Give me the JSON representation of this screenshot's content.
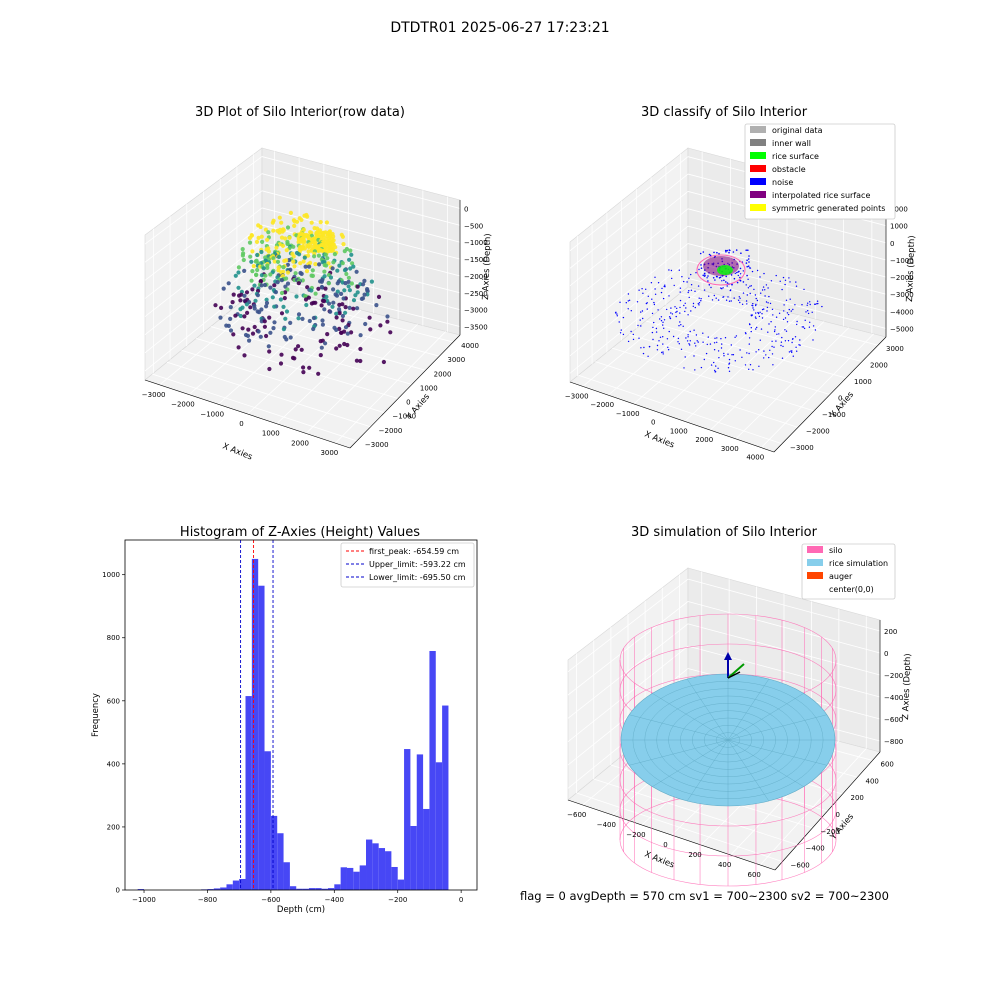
{
  "figure": {
    "suptitle": "DTDTR01 2025-06-27 17:23:21",
    "footer": "flag = 0     avgDepth = 570 cm  sv1 = 700~2300  sv2 = 700~2300"
  },
  "chart_data": [
    {
      "id": "raw",
      "type": "scatter",
      "title": "3D Plot of Silo Interior(row data)",
      "xlabel": "X Axies",
      "ylabel": "Y Axies",
      "zlabel": "Z Axies (Depth)",
      "x_ticks": [
        "−3000",
        "−2000",
        "−1000",
        "0",
        "1000",
        "2000",
        "3000"
      ],
      "y_ticks": [
        "−3000",
        "−2000",
        "−1000",
        "0",
        "1000",
        "2000",
        "3000",
        "4000"
      ],
      "z_ticks": [
        "0",
        "−500",
        "−1000",
        "−1500",
        "−2000",
        "−2500",
        "−3000",
        "−3500"
      ],
      "colormap": [
        "#440154",
        "#3b528b",
        "#21918c",
        "#5ec962",
        "#fde725"
      ]
    },
    {
      "id": "classify",
      "type": "scatter",
      "title": "3D classify of Silo Interior",
      "xlabel": "X Axies",
      "ylabel": "Y Axies",
      "zlabel": "Z Axies (Depth)",
      "x_ticks": [
        "−3000",
        "−2000",
        "−1000",
        "0",
        "1000",
        "2000",
        "3000",
        "4000"
      ],
      "y_ticks": [
        "−3000",
        "−2000",
        "−1000",
        "0",
        "1000",
        "2000",
        "3000"
      ],
      "z_ticks": [
        "2000",
        "1000",
        "0",
        "−1000",
        "−2000",
        "−3000",
        "−4000",
        "−5000"
      ],
      "legend_position": "top-right",
      "legend": [
        {
          "label": "original data",
          "color": "#b0b0b0"
        },
        {
          "label": "inner wall",
          "color": "#808080"
        },
        {
          "label": "rice surface",
          "color": "#00ff00"
        },
        {
          "label": "obstacle",
          "color": "#ff0000"
        },
        {
          "label": "noise",
          "color": "#0000ff"
        },
        {
          "label": "interpolated rice surface",
          "color": "#800080"
        },
        {
          "label": "symmetric generated points",
          "color": "#ffff00"
        }
      ]
    },
    {
      "id": "hist",
      "type": "bar",
      "title": "Histogram of Z-Axies (Height) Values",
      "xlabel": "Depth (cm)",
      "ylabel": "Frequency",
      "xlim": [
        -1060,
        50
      ],
      "ylim": [
        0,
        1110
      ],
      "bar_color": "#4747f5",
      "bin_width": 20,
      "x_ticks": [
        -1000,
        -800,
        -600,
        -400,
        -200,
        0
      ],
      "x_tick_labels": [
        "−1000",
        "−800",
        "−600",
        "−400",
        "−200",
        "0"
      ],
      "y_ticks": [
        0,
        200,
        400,
        600,
        800,
        1000
      ],
      "bins": [
        {
          "x": -1020,
          "v": 3
        },
        {
          "x": -820,
          "v": 2
        },
        {
          "x": -800,
          "v": 3
        },
        {
          "x": -780,
          "v": 5
        },
        {
          "x": -760,
          "v": 8
        },
        {
          "x": -740,
          "v": 18
        },
        {
          "x": -720,
          "v": 30
        },
        {
          "x": -700,
          "v": 35
        },
        {
          "x": -680,
          "v": 615
        },
        {
          "x": -660,
          "v": 1050
        },
        {
          "x": -640,
          "v": 965
        },
        {
          "x": -620,
          "v": 440
        },
        {
          "x": -600,
          "v": 235
        },
        {
          "x": -580,
          "v": 180
        },
        {
          "x": -560,
          "v": 88
        },
        {
          "x": -540,
          "v": 12
        },
        {
          "x": -520,
          "v": 4
        },
        {
          "x": -500,
          "v": 4
        },
        {
          "x": -480,
          "v": 6
        },
        {
          "x": -460,
          "v": 6
        },
        {
          "x": -440,
          "v": 4
        },
        {
          "x": -420,
          "v": 6
        },
        {
          "x": -400,
          "v": 18
        },
        {
          "x": -380,
          "v": 72
        },
        {
          "x": -360,
          "v": 70
        },
        {
          "x": -340,
          "v": 58
        },
        {
          "x": -320,
          "v": 78
        },
        {
          "x": -300,
          "v": 160
        },
        {
          "x": -280,
          "v": 148
        },
        {
          "x": -260,
          "v": 133
        },
        {
          "x": -240,
          "v": 123
        },
        {
          "x": -220,
          "v": 73
        },
        {
          "x": -200,
          "v": 33
        },
        {
          "x": -180,
          "v": 447
        },
        {
          "x": -160,
          "v": 203
        },
        {
          "x": -140,
          "v": 430
        },
        {
          "x": -120,
          "v": 257
        },
        {
          "x": -100,
          "v": 758
        },
        {
          "x": -80,
          "v": 405
        },
        {
          "x": -60,
          "v": 585
        }
      ],
      "vlines": [
        {
          "label": "first_peak: -654.59 cm",
          "x": -654.59,
          "color": "#ff0000"
        },
        {
          "label": "Upper_limit: -593.22 cm",
          "x": -593.22,
          "color": "#0000cc"
        },
        {
          "label": "Lower_limit: -695.50 cm",
          "x": -695.5,
          "color": "#0000cc"
        }
      ],
      "legend_position": "top-right"
    },
    {
      "id": "simulation",
      "type": "surface",
      "title": "3D simulation of Silo Interior",
      "xlabel": "X Axies",
      "ylabel": "Y Axies",
      "zlabel": "Z Axies (Depth)",
      "x_ticks": [
        "−600",
        "−400",
        "−200",
        "0",
        "200",
        "400",
        "600"
      ],
      "y_ticks": [
        "−600",
        "−400",
        "−200",
        "0",
        "200",
        "400",
        "600"
      ],
      "z_ticks": [
        "200",
        "0",
        "−200",
        "−400",
        "−600",
        "−800"
      ],
      "legend_position": "top-right",
      "legend": [
        {
          "label": "silo",
          "color": "#ff69b4"
        },
        {
          "label": "rice simulation",
          "color": "#87ceeb"
        },
        {
          "label": "auger",
          "color": "#ff4500"
        },
        {
          "label": "center(0,0)",
          "color": "none"
        }
      ]
    }
  ]
}
